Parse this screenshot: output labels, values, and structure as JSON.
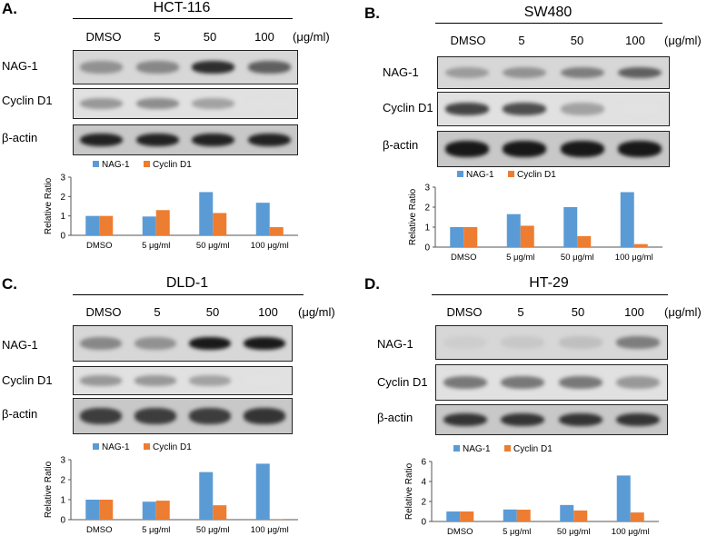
{
  "colors": {
    "nag1": "#5b9bd5",
    "cyclin": "#ed7d31"
  },
  "panels": [
    {
      "letter": "A.",
      "cell_line": "HCT-116",
      "lanes": [
        "DMSO",
        "5",
        "50",
        "100"
      ],
      "unit": "(μg/ml)",
      "rows": [
        "NAG-1",
        "Cyclin D1",
        "β-actin"
      ],
      "legend": [
        "NAG-1",
        "Cyclin D1"
      ],
      "ylabel": "Relative Ratio"
    },
    {
      "letter": "B.",
      "cell_line": "SW480",
      "lanes": [
        "DMSO",
        "5",
        "50",
        "100"
      ],
      "unit": "(μg/ml)",
      "rows": [
        "NAG-1",
        "Cyclin D1",
        "β-actin"
      ],
      "legend": [
        "NAG-1",
        "Cyclin D1"
      ],
      "ylabel": "Relative Ratio"
    },
    {
      "letter": "C.",
      "cell_line": "DLD-1",
      "lanes": [
        "DMSO",
        "5",
        "50",
        "100"
      ],
      "unit": "(μg/ml)",
      "rows": [
        "NAG-1",
        "Cyclin D1",
        "β-actin"
      ],
      "legend": [
        "NAG-1",
        "Cyclin D1"
      ],
      "ylabel": "Relative Ratio"
    },
    {
      "letter": "D.",
      "cell_line": "HT-29",
      "lanes": [
        "DMSO",
        "5",
        "50",
        "100"
      ],
      "unit": "(μg/ml)",
      "rows": [
        "NAG-1",
        "Cyclin D1",
        "β-actin"
      ],
      "legend": [
        "NAG-1",
        "Cyclin D1"
      ],
      "ylabel": "Relative Ratio"
    }
  ],
  "blot_intensity": {
    "A": {
      "nag1": [
        0.35,
        0.4,
        0.85,
        0.6
      ],
      "cyclin": [
        0.35,
        0.4,
        0.3,
        0.0
      ],
      "actin": [
        0.9,
        0.9,
        0.9,
        0.9
      ]
    },
    "B": {
      "nag1": [
        0.3,
        0.35,
        0.45,
        0.6
      ],
      "cyclin": [
        0.75,
        0.7,
        0.3,
        0.0
      ],
      "actin": [
        0.95,
        0.95,
        0.95,
        0.95
      ]
    },
    "C": {
      "nag1": [
        0.4,
        0.35,
        0.95,
        0.95
      ],
      "cyclin": [
        0.35,
        0.35,
        0.3,
        0.0
      ],
      "actin": [
        0.75,
        0.75,
        0.75,
        0.8
      ]
    },
    "D": {
      "nag1": [
        0.05,
        0.08,
        0.12,
        0.45
      ],
      "cyclin": [
        0.5,
        0.5,
        0.5,
        0.35
      ],
      "actin": [
        0.8,
        0.8,
        0.8,
        0.8
      ]
    }
  },
  "chart_data": [
    {
      "type": "bar",
      "categories": [
        "DMSO",
        "5 μg/ml",
        "50 μg/ml",
        "100 μg/ml"
      ],
      "series": [
        {
          "name": "NAG-1",
          "values": [
            1.0,
            0.97,
            2.23,
            1.68
          ]
        },
        {
          "name": "Cyclin D1",
          "values": [
            1.0,
            1.3,
            1.15,
            0.42
          ]
        }
      ],
      "ylabel": "Relative Ratio",
      "ylim": [
        0,
        3
      ],
      "yticks": [
        0,
        1,
        2,
        3
      ],
      "legend": "top"
    },
    {
      "type": "bar",
      "categories": [
        "DMSO",
        "5 μg/ml",
        "50 μg/ml",
        "100 μg/ml"
      ],
      "series": [
        {
          "name": "NAG-1",
          "values": [
            1.0,
            1.65,
            2.0,
            2.75
          ]
        },
        {
          "name": "Cyclin D1",
          "values": [
            1.0,
            1.07,
            0.55,
            0.15
          ]
        }
      ],
      "ylabel": "Relative Ratio",
      "ylim": [
        0,
        3
      ],
      "yticks": [
        0,
        1,
        2,
        3
      ],
      "legend": "top"
    },
    {
      "type": "bar",
      "categories": [
        "DMSO",
        "5 μg/ml",
        "50 μg/ml",
        "100 μg/ml"
      ],
      "series": [
        {
          "name": "NAG-1",
          "values": [
            1.0,
            0.9,
            2.38,
            2.8
          ]
        },
        {
          "name": "Cyclin D1",
          "values": [
            1.0,
            0.95,
            0.72,
            0.03
          ]
        }
      ],
      "ylabel": "Relative Ratio",
      "ylim": [
        0,
        3
      ],
      "yticks": [
        0,
        1,
        2,
        3
      ],
      "legend": "top"
    },
    {
      "type": "bar",
      "categories": [
        "DMSO",
        "5 μg/ml",
        "50 μg/ml",
        "100 μg/ml"
      ],
      "series": [
        {
          "name": "NAG-1",
          "values": [
            1.0,
            1.2,
            1.65,
            4.6
          ]
        },
        {
          "name": "Cyclin D1",
          "values": [
            1.0,
            1.18,
            1.1,
            0.9
          ]
        }
      ],
      "ylabel": "Relative Ratio",
      "ylim": [
        0,
        6
      ],
      "yticks": [
        0,
        2,
        4,
        6
      ],
      "legend": "top"
    }
  ]
}
